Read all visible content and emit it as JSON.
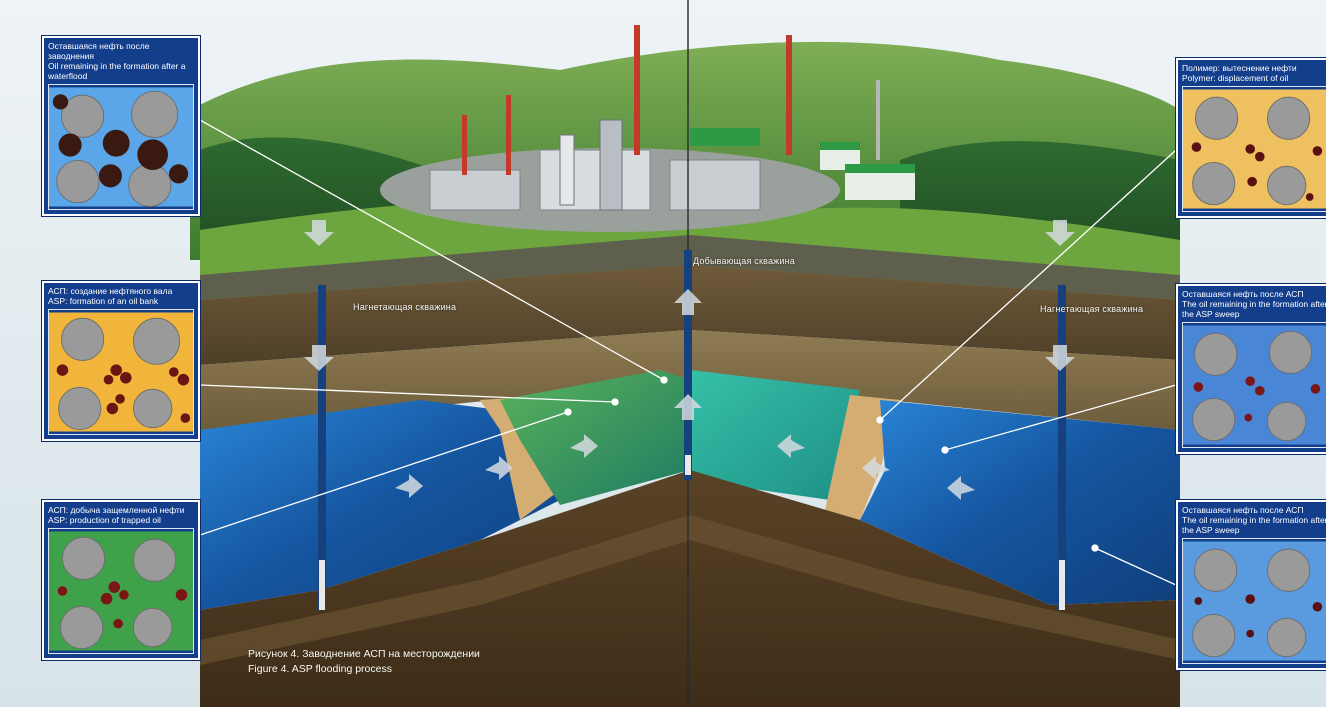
{
  "panels": [
    {
      "ru": "Оставшаяся нефть после заводнения",
      "en": "Oil remaining in the formation after a waterflood",
      "theme": "water-heavy-oil"
    },
    {
      "ru": "АСП: создание нефтяного вала",
      "en": "ASP: formation of an oil bank",
      "theme": "oil-bank"
    },
    {
      "ru": "АСП: добыча защемленной нефти",
      "en": "ASP: production of trapped oil",
      "theme": "trapped-oil"
    },
    {
      "ru": "Полимер: вытеснение нефти",
      "en": "Polymer: displacement of oil",
      "theme": "polymer"
    },
    {
      "ru": "Оставшаяся нефть после АСП",
      "en": "The oil remaining in the formation after the ASP sweep",
      "theme": "after-asp"
    },
    {
      "ru": "Оставшаяся нефть после АСП",
      "en": "The oil remaining in the formation after the ASP sweep",
      "theme": "after-asp"
    }
  ],
  "well_labels": {
    "injection_left": "Нагнетающая скважина",
    "production": "Добывающая скважина",
    "injection_right": "Нагнетающая скважина"
  },
  "caption": {
    "ru": "Рисунок 4. Заводнение АСП на месторождении",
    "en": "Figure 4. ASP flooding process"
  },
  "colors": {
    "panel_bg": "#123e8c",
    "water": "#1f6fc8",
    "polymer": "#2aa9a0",
    "asp_front": "#3c9a4a",
    "oil": "#3a1a10",
    "sand": "#d9b57a"
  }
}
